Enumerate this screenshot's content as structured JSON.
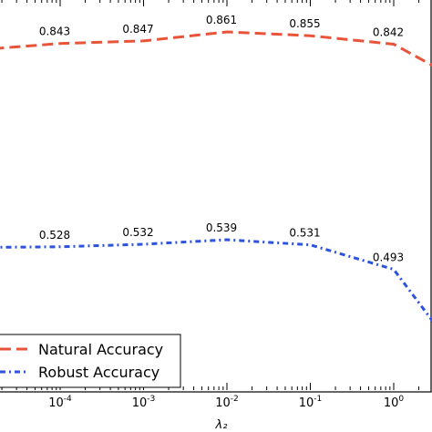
{
  "chart_data": {
    "type": "line",
    "xlabel": "λ₂",
    "ylabel": "",
    "title": "",
    "xscale": "log",
    "xlim": [
      1e-05,
      3
    ],
    "ylim": [
      0.3,
      0.9
    ],
    "x_ticks": [
      {
        "value": 0.0001,
        "label": "10",
        "exp": "-4"
      },
      {
        "value": 0.001,
        "label": "10",
        "exp": "-3"
      },
      {
        "value": 0.01,
        "label": "10",
        "exp": "-2"
      },
      {
        "value": 0.1,
        "label": "10",
        "exp": "-1"
      },
      {
        "value": 1,
        "label": "10",
        "exp": "0"
      }
    ],
    "grid": false,
    "legend": "bottom-left",
    "series": [
      {
        "name": "Natural Accuracy",
        "color": "#e8543a",
        "style": "dashed",
        "x": [
          1e-05,
          0.0001,
          0.001,
          0.01,
          0.1,
          1,
          3
        ],
        "y": [
          0.833,
          0.843,
          0.847,
          0.861,
          0.855,
          0.842,
          0.808
        ],
        "labels": [
          {
            "x": 0.0001,
            "text": "0.843"
          },
          {
            "x": 0.001,
            "text": "0.847"
          },
          {
            "x": 0.01,
            "text": "0.861"
          },
          {
            "x": 0.1,
            "text": "0.855"
          },
          {
            "x": 1,
            "text": "0.842"
          }
        ]
      },
      {
        "name": "Robust Accuracy",
        "color": "#2c52e0",
        "style": "dashdot",
        "x": [
          1e-05,
          0.0001,
          0.001,
          0.01,
          0.1,
          1,
          3
        ],
        "y": [
          0.527,
          0.528,
          0.532,
          0.539,
          0.531,
          0.493,
          0.411
        ],
        "labels": [
          {
            "x": 0.0001,
            "text": "0.528"
          },
          {
            "x": 0.001,
            "text": "0.532"
          },
          {
            "x": 0.01,
            "text": "0.539"
          },
          {
            "x": 0.1,
            "text": "0.531"
          },
          {
            "x": 1,
            "text": "0.493"
          }
        ]
      }
    ]
  }
}
